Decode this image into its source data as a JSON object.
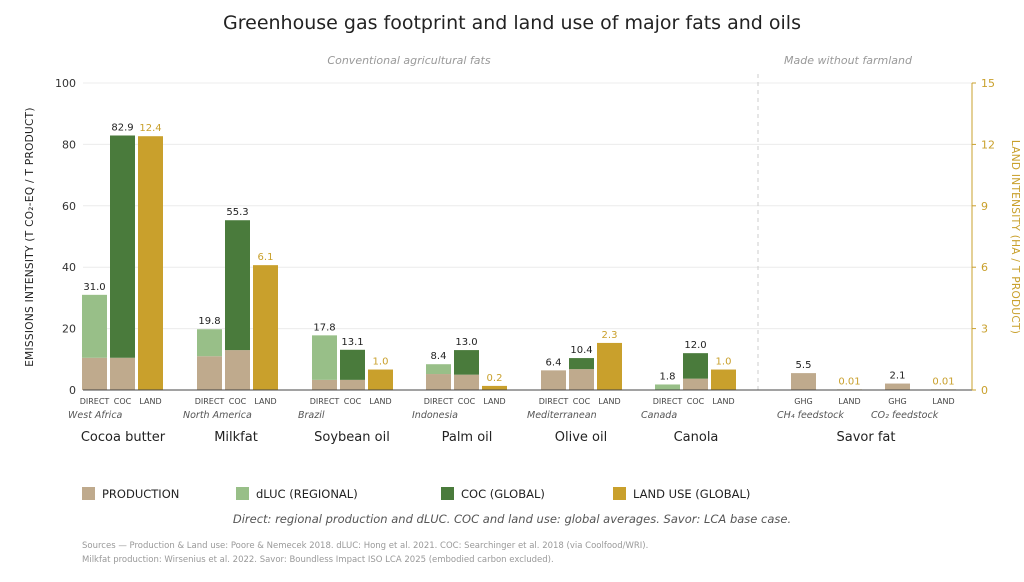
{
  "chart_data": {
    "type": "bar",
    "title": "Greenhouse gas footprint and land use of major fats and oils",
    "sections": [
      {
        "label": "Conventional agricultural fats"
      },
      {
        "label": "Made without farmland"
      }
    ],
    "ylabel_left": "EMISSIONS INTENSITY (T CO₂-EQ / T PRODUCT)",
    "ylabel_right": "LAND INTENSITY (HA / T PRODUCT)",
    "ylim_left": [
      0,
      100
    ],
    "ylim_right": [
      0,
      15
    ],
    "yticks_left": [
      0,
      20,
      40,
      60,
      80,
      100
    ],
    "yticks_right": [
      0,
      3,
      6,
      9,
      12,
      15
    ],
    "colors": {
      "production": "#bfaa8d",
      "dluc": "#98bf88",
      "coc": "#4a7b3c",
      "land": "#c9a02c"
    },
    "groups": [
      {
        "product": "Cocoa butter",
        "region": "West Africa",
        "bars": [
          {
            "label": "DIRECT",
            "kind": "direct",
            "production": 10.5,
            "dluc": 20.5,
            "total_label": "31.0"
          },
          {
            "label": "COC",
            "kind": "coc",
            "production": 10.5,
            "coc": 72.4,
            "total_label": "82.9"
          },
          {
            "label": "LAND",
            "kind": "land",
            "land": 12.4,
            "total_label": "12.4"
          }
        ]
      },
      {
        "product": "Milkfat",
        "region": "North America",
        "bars": [
          {
            "label": "DIRECT",
            "kind": "direct",
            "production": 11,
            "dluc": 8.8,
            "total_label": "19.8"
          },
          {
            "label": "COC",
            "kind": "coc",
            "production": 13,
            "coc": 42.3,
            "total_label": "55.3"
          },
          {
            "label": "LAND",
            "kind": "land",
            "land": 6.1,
            "total_label": "6.1"
          }
        ]
      },
      {
        "product": "Soybean oil",
        "region": "Brazil",
        "bars": [
          {
            "label": "DIRECT",
            "kind": "direct",
            "production": 3.3,
            "dluc": 14.5,
            "total_label": "17.8"
          },
          {
            "label": "COC",
            "kind": "coc",
            "production": 3.3,
            "coc": 9.8,
            "total_label": "13.1"
          },
          {
            "label": "LAND",
            "kind": "land",
            "land": 1.0,
            "total_label": "1.0"
          }
        ]
      },
      {
        "product": "Palm oil",
        "region": "Indonesia",
        "bars": [
          {
            "label": "DIRECT",
            "kind": "direct",
            "production": 5.2,
            "dluc": 3.2,
            "total_label": "8.4"
          },
          {
            "label": "COC",
            "kind": "coc",
            "production": 5.0,
            "coc": 8.0,
            "total_label": "13.0"
          },
          {
            "label": "LAND",
            "kind": "land",
            "land": 0.2,
            "total_label": "0.2"
          }
        ]
      },
      {
        "product": "Olive oil",
        "region": "Mediterranean",
        "bars": [
          {
            "label": "DIRECT",
            "kind": "direct",
            "production": 6.4,
            "dluc": 0,
            "total_label": "6.4"
          },
          {
            "label": "COC",
            "kind": "coc",
            "production": 6.8,
            "coc": 3.6,
            "total_label": "10.4"
          },
          {
            "label": "LAND",
            "kind": "land",
            "land": 2.3,
            "total_label": "2.3"
          }
        ]
      },
      {
        "product": "Canola",
        "region": "Canada",
        "bars": [
          {
            "label": "DIRECT",
            "kind": "direct",
            "production": 0,
            "dluc": 1.8,
            "total_label": "1.8"
          },
          {
            "label": "COC",
            "kind": "coc",
            "production": 3.7,
            "coc": 8.3,
            "total_label": "12.0"
          },
          {
            "label": "LAND",
            "kind": "land",
            "land": 1.0,
            "total_label": "1.0"
          }
        ]
      },
      {
        "product": "Savor fat",
        "region": "CH₄ feedstock",
        "bars": [
          {
            "label": "GHG",
            "kind": "direct",
            "production": 5.5,
            "dluc": 0,
            "total_label": "5.5"
          },
          {
            "label": "LAND",
            "kind": "land",
            "land": 0.01,
            "total_label": "0.01"
          }
        ]
      },
      {
        "product": "",
        "region": "CO₂ feedstock",
        "bars": [
          {
            "label": "GHG",
            "kind": "direct",
            "production": 2.1,
            "dluc": 0,
            "total_label": "2.1"
          },
          {
            "label": "LAND",
            "kind": "land",
            "land": 0.01,
            "total_label": "0.01"
          }
        ]
      }
    ],
    "legend": [
      {
        "label": "PRODUCTION",
        "key": "production"
      },
      {
        "label": "dLUC (REGIONAL)",
        "key": "dluc"
      },
      {
        "label": "COC (GLOBAL)",
        "key": "coc"
      },
      {
        "label": "LAND USE (GLOBAL)",
        "key": "land"
      }
    ],
    "note": "Direct: regional production and dLUC. COC and land use: global averages. Savor: LCA base case.",
    "sources": [
      "Sources — Production & Land use: Poore & Nemecek 2018. dLUC: Hong et al. 2021. COC: Searchinger et al. 2018 (via Coolfood/WRI).",
      "Milkfat production: Wirsenius et al. 2022. Savor: Boundless Impact ISO LCA 2025 (embodied carbon excluded)."
    ]
  }
}
